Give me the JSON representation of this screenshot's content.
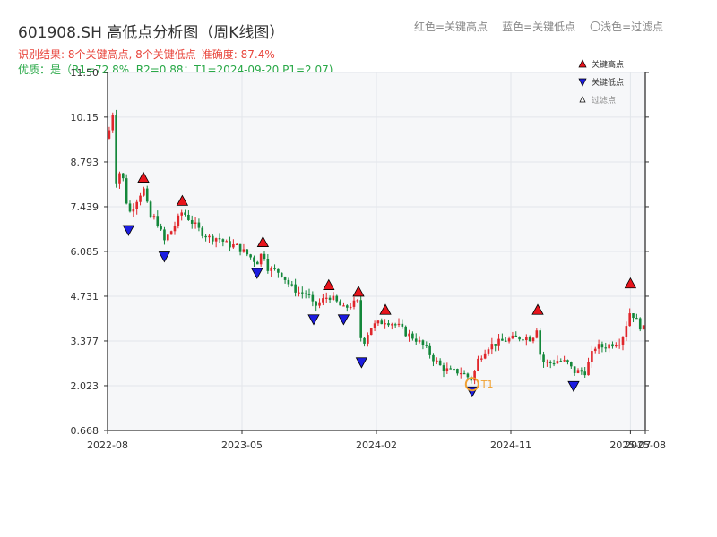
{
  "header": {
    "title": "601908.SH 高低点分析图（周K线图）",
    "legend_red": "红色=关键高点",
    "legend_blue": "蓝色=关键低点",
    "legend_light": "〇浅色=过滤点",
    "result": "识别结果: 8个关键高点, 8个关键低点",
    "accuracy": "准确度: 87.4%",
    "quality": "优质：是（R1=72.8%, R2=0.88；T1=2024-09-20 P1=2.07)"
  },
  "colors": {
    "up": "#e0262b",
    "down": "#13873a",
    "high_marker": "#e8141c",
    "low_marker": "#1c1ce0",
    "t1_ring": "#f0a030",
    "title_red": "#e8453c",
    "quality_green": "#29a847"
  },
  "chart_data": {
    "type": "candlestick",
    "title": "601908.SH 高低点分析图（周K线图）",
    "x_range": [
      2022.583,
      2025.583
    ],
    "ylim": [
      0.668,
      11.5
    ],
    "y_ticks": [
      "0.668",
      "2.023",
      "3.377",
      "4.731",
      "6.085",
      "7.439",
      "8.793",
      "10.15",
      "11.50"
    ],
    "y_tick_values": [
      0.668,
      2.023,
      3.377,
      4.731,
      6.085,
      7.439,
      8.793,
      10.15,
      11.5
    ],
    "x_ticks": [
      {
        "label": "2022-08",
        "x": 2022.583
      },
      {
        "label": "2023-05",
        "x": 2023.333
      },
      {
        "label": "2024-02",
        "x": 2024.083
      },
      {
        "label": "2024-11",
        "x": 2024.833
      },
      {
        "label": "2025-07",
        "x": 2025.5
      },
      {
        "label": "2025-08",
        "x": 2025.583
      }
    ],
    "grid": true,
    "legend_placement": "top-right",
    "legend": [
      {
        "label": "关键高点",
        "kind": "high"
      },
      {
        "label": "关键低点",
        "kind": "low"
      },
      {
        "label": "过滤点",
        "kind": "filtered"
      }
    ],
    "key_highs": [
      {
        "x": 2022.783,
        "y": 8.1
      },
      {
        "x": 2023.0,
        "y": 7.4
      },
      {
        "x": 2023.45,
        "y": 6.15
      },
      {
        "x": 2023.817,
        "y": 4.85
      },
      {
        "x": 2023.983,
        "y": 4.65
      },
      {
        "x": 2024.133,
        "y": 4.1
      },
      {
        "x": 2024.983,
        "y": 4.1
      },
      {
        "x": 2025.5,
        "y": 4.9
      }
    ],
    "key_lows": [
      {
        "x": 2022.7,
        "y": 6.95
      },
      {
        "x": 2022.9,
        "y": 6.15
      },
      {
        "x": 2023.417,
        "y": 5.65
      },
      {
        "x": 2023.733,
        "y": 4.25
      },
      {
        "x": 2023.9,
        "y": 4.25
      },
      {
        "x": 2024.0,
        "y": 2.95
      },
      {
        "x": 2024.617,
        "y": 2.07
      },
      {
        "x": 2025.183,
        "y": 2.23
      }
    ],
    "t1": {
      "label": "T1",
      "x": 2024.617,
      "y": 2.07
    },
    "path": [
      [
        2022.583,
        9.5
      ],
      [
        2022.617,
        10.4
      ],
      [
        2022.63,
        8.2
      ],
      [
        2022.66,
        8.6
      ],
      [
        2022.7,
        7.2
      ],
      [
        2022.75,
        7.7
      ],
      [
        2022.783,
        8.0
      ],
      [
        2022.82,
        7.1
      ],
      [
        2022.85,
        7.1
      ],
      [
        2022.9,
        6.4
      ],
      [
        2022.95,
        6.8
      ],
      [
        2023.0,
        7.3
      ],
      [
        2023.05,
        7.0
      ],
      [
        2023.1,
        6.7
      ],
      [
        2023.15,
        6.5
      ],
      [
        2023.2,
        6.5
      ],
      [
        2023.25,
        6.3
      ],
      [
        2023.3,
        6.25
      ],
      [
        2023.35,
        6.05
      ],
      [
        2023.417,
        5.75
      ],
      [
        2023.45,
        6.1
      ],
      [
        2023.48,
        5.55
      ],
      [
        2023.55,
        5.45
      ],
      [
        2023.6,
        5.05
      ],
      [
        2023.65,
        4.85
      ],
      [
        2023.7,
        4.8
      ],
      [
        2023.733,
        4.4
      ],
      [
        2023.817,
        4.75
      ],
      [
        2023.85,
        4.6
      ],
      [
        2023.9,
        4.35
      ],
      [
        2023.95,
        4.5
      ],
      [
        2023.983,
        4.55
      ],
      [
        2024.0,
        3.2
      ],
      [
        2024.05,
        3.8
      ],
      [
        2024.133,
        4.0
      ],
      [
        2024.2,
        3.85
      ],
      [
        2024.25,
        3.6
      ],
      [
        2024.3,
        3.45
      ],
      [
        2024.35,
        3.2
      ],
      [
        2024.4,
        2.85
      ],
      [
        2024.45,
        2.55
      ],
      [
        2024.5,
        2.45
      ],
      [
        2024.55,
        2.45
      ],
      [
        2024.617,
        2.2
      ],
      [
        2024.65,
        2.8
      ],
      [
        2024.7,
        3.2
      ],
      [
        2024.75,
        3.3
      ],
      [
        2024.8,
        3.4
      ],
      [
        2024.85,
        3.45
      ],
      [
        2024.9,
        3.5
      ],
      [
        2024.95,
        3.45
      ],
      [
        2024.983,
        3.85
      ],
      [
        2025.0,
        2.75
      ],
      [
        2025.05,
        2.7
      ],
      [
        2025.1,
        2.8
      ],
      [
        2025.15,
        2.7
      ],
      [
        2025.183,
        2.45
      ],
      [
        2025.25,
        2.45
      ],
      [
        2025.3,
        3.2
      ],
      [
        2025.35,
        3.2
      ],
      [
        2025.4,
        3.3
      ],
      [
        2025.45,
        3.4
      ],
      [
        2025.5,
        4.3
      ],
      [
        2025.55,
        3.85
      ],
      [
        2025.583,
        3.7
      ]
    ]
  }
}
